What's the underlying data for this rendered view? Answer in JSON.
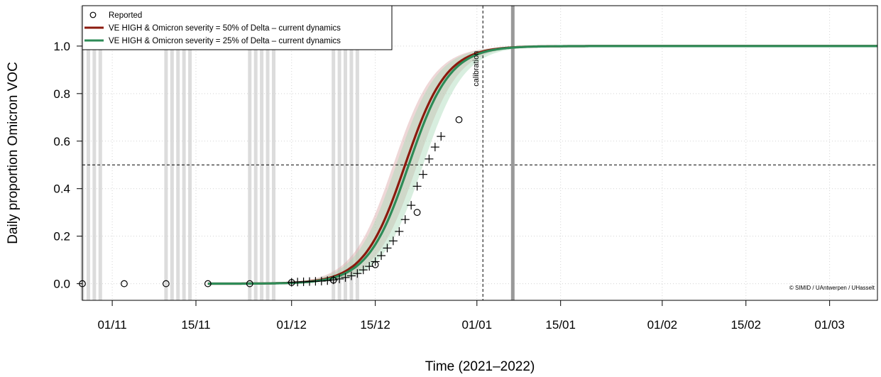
{
  "chart_data": {
    "type": "line",
    "xlabel": "Time (2021–2022)",
    "ylabel": "Daily proportion Omicron VOC",
    "x_range": [
      "2021-10-27",
      "2022-03-09"
    ],
    "ylim": [
      -0.07,
      1.17
    ],
    "x_ticks": [
      {
        "date": "2021-11-01",
        "label": "01/11"
      },
      {
        "date": "2021-11-15",
        "label": "15/11"
      },
      {
        "date": "2021-12-01",
        "label": "01/12"
      },
      {
        "date": "2021-12-15",
        "label": "15/12"
      },
      {
        "date": "2022-01-01",
        "label": "01/01"
      },
      {
        "date": "2022-01-15",
        "label": "15/01"
      },
      {
        "date": "2022-02-01",
        "label": "01/02"
      },
      {
        "date": "2022-02-15",
        "label": "15/02"
      },
      {
        "date": "2022-03-01",
        "label": "01/03"
      }
    ],
    "y_ticks": [
      {
        "value": 0.0,
        "label": "0.0"
      },
      {
        "value": 0.2,
        "label": "0.2"
      },
      {
        "value": 0.4,
        "label": "0.4"
      },
      {
        "value": 0.6,
        "label": "0.6"
      },
      {
        "value": 0.8,
        "label": "0.8"
      },
      {
        "value": 1.0,
        "label": "1.0"
      }
    ],
    "grid": true,
    "legend_position": "top-left",
    "reference_lines": {
      "horizontal_y": 0.5,
      "vertical_dashed_date": "2022-01-02",
      "vertical_dashed_label": "calibration",
      "vertical_solid_date": "2022-01-07"
    },
    "shaded_date_groups": [
      [
        "2021-10-27",
        "2021-10-28",
        "2021-10-29",
        "2021-10-30"
      ],
      [
        "2021-11-10",
        "2021-11-11",
        "2021-11-12",
        "2021-11-13",
        "2021-11-14"
      ],
      [
        "2021-11-24",
        "2021-11-25",
        "2021-11-26",
        "2021-11-27",
        "2021-11-28"
      ],
      [
        "2021-12-08",
        "2021-12-09",
        "2021-12-10",
        "2021-12-11",
        "2021-12-12"
      ]
    ],
    "series": [
      {
        "name": "Reported",
        "kind": "points",
        "marker": "open-circle",
        "color": "#000000",
        "points": [
          {
            "x": "2021-10-27",
            "y": 0.0
          },
          {
            "x": "2021-11-03",
            "y": 0.0
          },
          {
            "x": "2021-11-10",
            "y": 0.0
          },
          {
            "x": "2021-11-17",
            "y": 0.0
          },
          {
            "x": "2021-11-24",
            "y": 0.0
          },
          {
            "x": "2021-12-01",
            "y": 0.005
          },
          {
            "x": "2021-12-08",
            "y": 0.015
          },
          {
            "x": "2021-12-15",
            "y": 0.08
          },
          {
            "x": "2021-12-22",
            "y": 0.3
          },
          {
            "x": "2021-12-29",
            "y": 0.69
          }
        ]
      },
      {
        "name": "VE HIGH & Omicron severity = 50% of Delta – current dynamics",
        "kind": "line",
        "color": "#8b1a0e",
        "band_color": "#d9a6a6",
        "curve": {
          "midpoint": "2021-12-20",
          "rate": 0.29,
          "band_low_midpoint": "2021-12-22",
          "band_high_midpoint": "2021-12-18"
        },
        "start": "2021-11-17",
        "end": "2022-03-09"
      },
      {
        "name": "VE HIGH & Omicron severity = 25% of Delta – current dynamics",
        "kind": "line",
        "color": "#2e8b57",
        "band_color": "#a9d9b9",
        "curve": {
          "midpoint": "2021-12-20.6",
          "rate": 0.29,
          "band_low_midpoint": "2021-12-23",
          "band_high_midpoint": "2021-12-18.5"
        },
        "start": "2021-11-17",
        "end": "2022-03-09"
      },
      {
        "name": "",
        "kind": "points",
        "marker": "plus",
        "color": "#000000",
        "points": [
          {
            "x": "2021-12-01",
            "y": 0.006
          },
          {
            "x": "2021-12-02",
            "y": 0.007
          },
          {
            "x": "2021-12-03",
            "y": 0.008
          },
          {
            "x": "2021-12-04",
            "y": 0.009
          },
          {
            "x": "2021-12-05",
            "y": 0.01
          },
          {
            "x": "2021-12-06",
            "y": 0.011
          },
          {
            "x": "2021-12-07",
            "y": 0.013
          },
          {
            "x": "2021-12-08",
            "y": 0.016
          },
          {
            "x": "2021-12-09",
            "y": 0.02
          },
          {
            "x": "2021-12-10",
            "y": 0.026
          },
          {
            "x": "2021-12-11",
            "y": 0.033
          },
          {
            "x": "2021-12-12",
            "y": 0.043
          },
          {
            "x": "2021-12-13",
            "y": 0.058
          },
          {
            "x": "2021-12-14",
            "y": 0.073
          },
          {
            "x": "2021-12-15",
            "y": 0.093
          },
          {
            "x": "2021-12-16",
            "y": 0.118
          },
          {
            "x": "2021-12-17",
            "y": 0.15
          },
          {
            "x": "2021-12-18",
            "y": 0.18
          },
          {
            "x": "2021-12-19",
            "y": 0.22
          },
          {
            "x": "2021-12-20",
            "y": 0.27
          },
          {
            "x": "2021-12-21",
            "y": 0.33
          },
          {
            "x": "2021-12-22",
            "y": 0.41
          },
          {
            "x": "2021-12-23",
            "y": 0.46
          },
          {
            "x": "2021-12-24",
            "y": 0.525
          },
          {
            "x": "2021-12-25",
            "y": 0.575
          },
          {
            "x": "2021-12-26",
            "y": 0.62
          }
        ]
      }
    ],
    "copyright": "© SIMID / UAntwerpen / UHasselt"
  }
}
